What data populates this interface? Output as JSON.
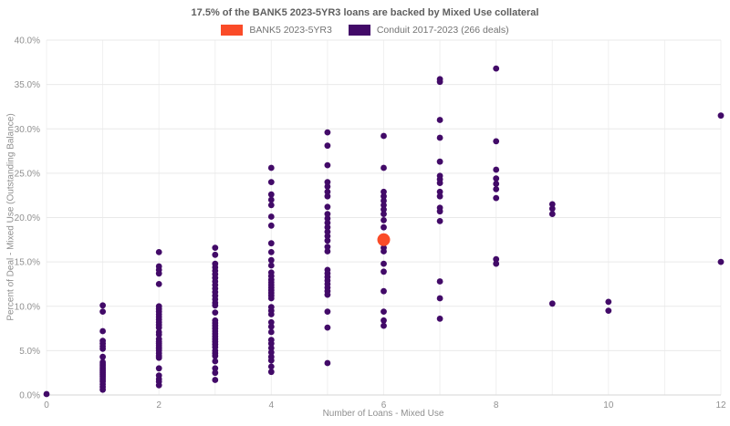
{
  "title": "17.5% of the BANK5 2023-5YR3 loans are backed by Mixed Use collateral",
  "legend": [
    {
      "label": "BANK5 2023-5YR3",
      "color": "#fa4b28"
    },
    {
      "label": "Conduit 2017-2023 (266 deals)",
      "color": "#420a68"
    }
  ],
  "colors": {
    "background": "#ffffff",
    "gridline_h": "#e9e9e9",
    "gridline_v": "#f0f0f0",
    "axis_line": "#d6d6d6",
    "tick_text": "#909090"
  },
  "chart_data": {
    "type": "scatter",
    "title": "17.5% of the BANK5 2023-5YR3 loans are backed by Mixed Use collateral",
    "xlabel": "Number of Loans - Mixed Use",
    "ylabel": "Percent of Deal - Mixed Use (Outstanding Balance)",
    "xlim": [
      0,
      12
    ],
    "ylim": [
      0,
      40
    ],
    "grid": true,
    "legend_position": "top",
    "x_tick_values": [
      0,
      2,
      4,
      6,
      8,
      10,
      12
    ],
    "x_tick_labels": [
      "0",
      "2",
      "4",
      "6",
      "8",
      "10",
      "12"
    ],
    "x_grid_values": [
      0,
      1,
      2,
      3,
      4,
      5,
      6,
      7,
      8,
      9,
      10,
      11,
      12
    ],
    "y_tick_values": [
      0,
      5,
      10,
      15,
      20,
      25,
      30,
      35,
      40
    ],
    "y_tick_labels": [
      "0.0%",
      "5.0%",
      "10.0%",
      "15.0%",
      "20.0%",
      "25.0%",
      "30.0%",
      "35.0%",
      "40.0%"
    ],
    "series": [
      {
        "name": "Conduit 2017-2023 (266 deals)",
        "color": "#420a68",
        "marker_size": 3.4,
        "points": [
          [
            0,
            0.1
          ],
          [
            1,
            10.1
          ],
          [
            1,
            9.4
          ],
          [
            1,
            7.2
          ],
          [
            1,
            6.1
          ],
          [
            1,
            5.8
          ],
          [
            1,
            5.5
          ],
          [
            1,
            5.2
          ],
          [
            1,
            4.3
          ],
          [
            1,
            3.7
          ],
          [
            1,
            3.5
          ],
          [
            1,
            3.3
          ],
          [
            1,
            3.1
          ],
          [
            1,
            2.9
          ],
          [
            1,
            2.7
          ],
          [
            1,
            2.5
          ],
          [
            1,
            2.3
          ],
          [
            1,
            2.1
          ],
          [
            1,
            1.9
          ],
          [
            1,
            1.7
          ],
          [
            1,
            1.5
          ],
          [
            1,
            1.2
          ],
          [
            1,
            0.9
          ],
          [
            1,
            0.6
          ],
          [
            2,
            16.1
          ],
          [
            2,
            14.5
          ],
          [
            2,
            14.1
          ],
          [
            2,
            13.7
          ],
          [
            2,
            12.5
          ],
          [
            2,
            10.0
          ],
          [
            2,
            9.7
          ],
          [
            2,
            9.4
          ],
          [
            2,
            9.1
          ],
          [
            2,
            8.8
          ],
          [
            2,
            8.5
          ],
          [
            2,
            8.2
          ],
          [
            2,
            7.9
          ],
          [
            2,
            7.6
          ],
          [
            2,
            7.1
          ],
          [
            2,
            6.8
          ],
          [
            2,
            6.3
          ],
          [
            2,
            6.0
          ],
          [
            2,
            5.8
          ],
          [
            2,
            5.6
          ],
          [
            2,
            5.4
          ],
          [
            2,
            5.2
          ],
          [
            2,
            5.0
          ],
          [
            2,
            4.7
          ],
          [
            2,
            4.4
          ],
          [
            2,
            4.2
          ],
          [
            2,
            3.0
          ],
          [
            2,
            2.2
          ],
          [
            2,
            1.8
          ],
          [
            2,
            1.5
          ],
          [
            2,
            1.1
          ],
          [
            3,
            16.6
          ],
          [
            3,
            15.8
          ],
          [
            3,
            14.8
          ],
          [
            3,
            14.4
          ],
          [
            3,
            14.0
          ],
          [
            3,
            13.6
          ],
          [
            3,
            13.2
          ],
          [
            3,
            12.8
          ],
          [
            3,
            12.4
          ],
          [
            3,
            12.0
          ],
          [
            3,
            11.6
          ],
          [
            3,
            11.2
          ],
          [
            3,
            10.8
          ],
          [
            3,
            10.4
          ],
          [
            3,
            10.1
          ],
          [
            3,
            9.3
          ],
          [
            3,
            8.4
          ],
          [
            3,
            8.1
          ],
          [
            3,
            7.8
          ],
          [
            3,
            7.5
          ],
          [
            3,
            7.2
          ],
          [
            3,
            6.9
          ],
          [
            3,
            6.6
          ],
          [
            3,
            6.3
          ],
          [
            3,
            6.0
          ],
          [
            3,
            5.7
          ],
          [
            3,
            5.4
          ],
          [
            3,
            5.0
          ],
          [
            3,
            4.7
          ],
          [
            3,
            4.4
          ],
          [
            3,
            3.8
          ],
          [
            3,
            3.0
          ],
          [
            3,
            2.5
          ],
          [
            3,
            1.7
          ],
          [
            4,
            25.6
          ],
          [
            4,
            24.0
          ],
          [
            4,
            22.6
          ],
          [
            4,
            22.0
          ],
          [
            4,
            21.4
          ],
          [
            4,
            20.1
          ],
          [
            4,
            19.1
          ],
          [
            4,
            17.1
          ],
          [
            4,
            16.1
          ],
          [
            4,
            15.2
          ],
          [
            4,
            14.6
          ],
          [
            4,
            13.8
          ],
          [
            4,
            13.4
          ],
          [
            4,
            13.0
          ],
          [
            4,
            12.7
          ],
          [
            4,
            12.4
          ],
          [
            4,
            12.1
          ],
          [
            4,
            11.8
          ],
          [
            4,
            11.5
          ],
          [
            4,
            11.2
          ],
          [
            4,
            10.9
          ],
          [
            4,
            9.9
          ],
          [
            4,
            9.5
          ],
          [
            4,
            9.1
          ],
          [
            4,
            8.2
          ],
          [
            4,
            7.7
          ],
          [
            4,
            7.1
          ],
          [
            4,
            6.2
          ],
          [
            4,
            5.8
          ],
          [
            4,
            5.3
          ],
          [
            4,
            4.8
          ],
          [
            4,
            4.3
          ],
          [
            4,
            3.9
          ],
          [
            4,
            3.2
          ],
          [
            4,
            2.6
          ],
          [
            5,
            29.6
          ],
          [
            5,
            28.1
          ],
          [
            5,
            25.9
          ],
          [
            5,
            24.0
          ],
          [
            5,
            23.5
          ],
          [
            5,
            22.9
          ],
          [
            5,
            22.4
          ],
          [
            5,
            21.2
          ],
          [
            5,
            20.4
          ],
          [
            5,
            19.9
          ],
          [
            5,
            19.4
          ],
          [
            5,
            18.9
          ],
          [
            5,
            18.4
          ],
          [
            5,
            17.9
          ],
          [
            5,
            17.4
          ],
          [
            5,
            16.7
          ],
          [
            5,
            16.2
          ],
          [
            5,
            14.1
          ],
          [
            5,
            13.7
          ],
          [
            5,
            13.3
          ],
          [
            5,
            12.9
          ],
          [
            5,
            12.5
          ],
          [
            5,
            12.1
          ],
          [
            5,
            11.7
          ],
          [
            5,
            11.3
          ],
          [
            5,
            9.4
          ],
          [
            5,
            7.6
          ],
          [
            5,
            3.6
          ],
          [
            6,
            29.2
          ],
          [
            6,
            25.6
          ],
          [
            6,
            22.9
          ],
          [
            6,
            22.4
          ],
          [
            6,
            21.9
          ],
          [
            6,
            21.4
          ],
          [
            6,
            20.9
          ],
          [
            6,
            20.4
          ],
          [
            6,
            19.7
          ],
          [
            6,
            18.9
          ],
          [
            6,
            16.6
          ],
          [
            6,
            16.2
          ],
          [
            6,
            14.8
          ],
          [
            6,
            13.9
          ],
          [
            6,
            11.7
          ],
          [
            6,
            9.4
          ],
          [
            6,
            8.4
          ],
          [
            6,
            7.8
          ],
          [
            7,
            35.6
          ],
          [
            7,
            35.3
          ],
          [
            7,
            31.0
          ],
          [
            7,
            29.0
          ],
          [
            7,
            26.3
          ],
          [
            7,
            24.7
          ],
          [
            7,
            24.3
          ],
          [
            7,
            23.9
          ],
          [
            7,
            22.9
          ],
          [
            7,
            22.4
          ],
          [
            7,
            21.1
          ],
          [
            7,
            20.7
          ],
          [
            7,
            19.6
          ],
          [
            7,
            12.8
          ],
          [
            7,
            10.9
          ],
          [
            7,
            8.6
          ],
          [
            8,
            36.8
          ],
          [
            8,
            28.6
          ],
          [
            8,
            25.4
          ],
          [
            8,
            24.4
          ],
          [
            8,
            23.8
          ],
          [
            8,
            23.2
          ],
          [
            8,
            22.2
          ],
          [
            8,
            15.3
          ],
          [
            8,
            14.8
          ],
          [
            9,
            21.5
          ],
          [
            9,
            21.0
          ],
          [
            9,
            20.4
          ],
          [
            9,
            10.3
          ],
          [
            10,
            10.5
          ],
          [
            10,
            9.5
          ],
          [
            12,
            31.5
          ],
          [
            12,
            15.0
          ]
        ]
      },
      {
        "name": "BANK5 2023-5YR3",
        "color": "#fa4b28",
        "marker_size": 7,
        "points": [
          [
            6,
            17.5
          ]
        ]
      }
    ]
  }
}
